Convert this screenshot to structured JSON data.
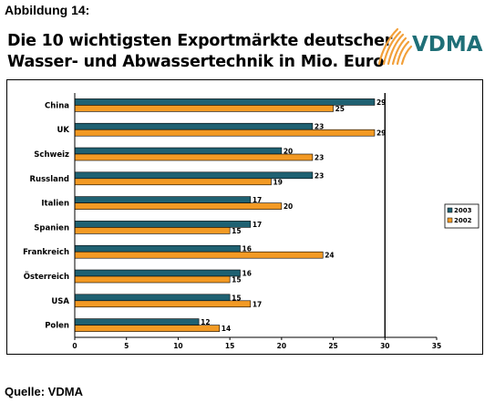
{
  "header": {
    "figure_label": "Abbildung 14:",
    "title_line1": "Die 10 wichtigsten Exportmärkte deutscher",
    "title_line2": "Wasser- und Abwassertechnik in Mio. Euro",
    "logo_text": "VDMA"
  },
  "footer": {
    "source": "Quelle: VDMA"
  },
  "colors": {
    "series_2003": "#1F6172",
    "series_2002": "#F39A24",
    "logo_teal": "#1F6F77",
    "logo_orange": "#F2A03A"
  },
  "chart_data": {
    "type": "bar",
    "orientation": "horizontal",
    "categories": [
      "China",
      "UK",
      "Schweiz",
      "Russland",
      "Italien",
      "Spanien",
      "Frankreich",
      "Österreich",
      "USA",
      "Polen"
    ],
    "series": [
      {
        "name": "2003",
        "values": [
          29,
          23,
          20,
          23,
          17,
          17,
          16,
          16,
          15,
          12
        ]
      },
      {
        "name": "2002",
        "values": [
          25,
          29,
          23,
          19,
          20,
          15,
          24,
          15,
          17,
          14
        ]
      }
    ],
    "xlim": [
      0,
      35
    ],
    "xticks": [
      0,
      5,
      10,
      15,
      20,
      25,
      30,
      35
    ],
    "reference_line": 30,
    "legend_position": "right",
    "grid": false
  }
}
